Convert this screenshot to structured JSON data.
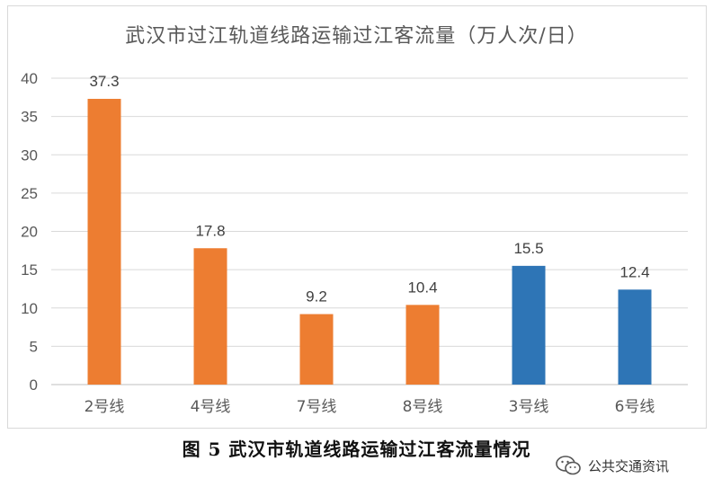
{
  "chart_data": {
    "type": "bar",
    "title": "武汉市过江轨道线路运输过江客流量（万人次/日）",
    "categories": [
      "2号线",
      "4号线",
      "7号线",
      "8号线",
      "3号线",
      "6号线"
    ],
    "values": [
      37.3,
      17.8,
      9.2,
      10.4,
      15.5,
      12.4
    ],
    "data_labels": [
      "37.3",
      "17.8",
      "9.2",
      "10.4",
      "15.5",
      "12.4"
    ],
    "bar_colors": [
      "#ed7d31",
      "#ed7d31",
      "#ed7d31",
      "#ed7d31",
      "#2e75b6",
      "#2e75b6"
    ],
    "yticks": [
      "0",
      "5",
      "10",
      "15",
      "20",
      "25",
      "30",
      "35",
      "40"
    ],
    "ylim": [
      0,
      40
    ],
    "grid": true,
    "legend": "none"
  },
  "caption": "图 5  武汉市轨道线路运输过江客流量情况",
  "watermark": {
    "icon": "wechat-icon",
    "text": "公共交通资讯"
  }
}
